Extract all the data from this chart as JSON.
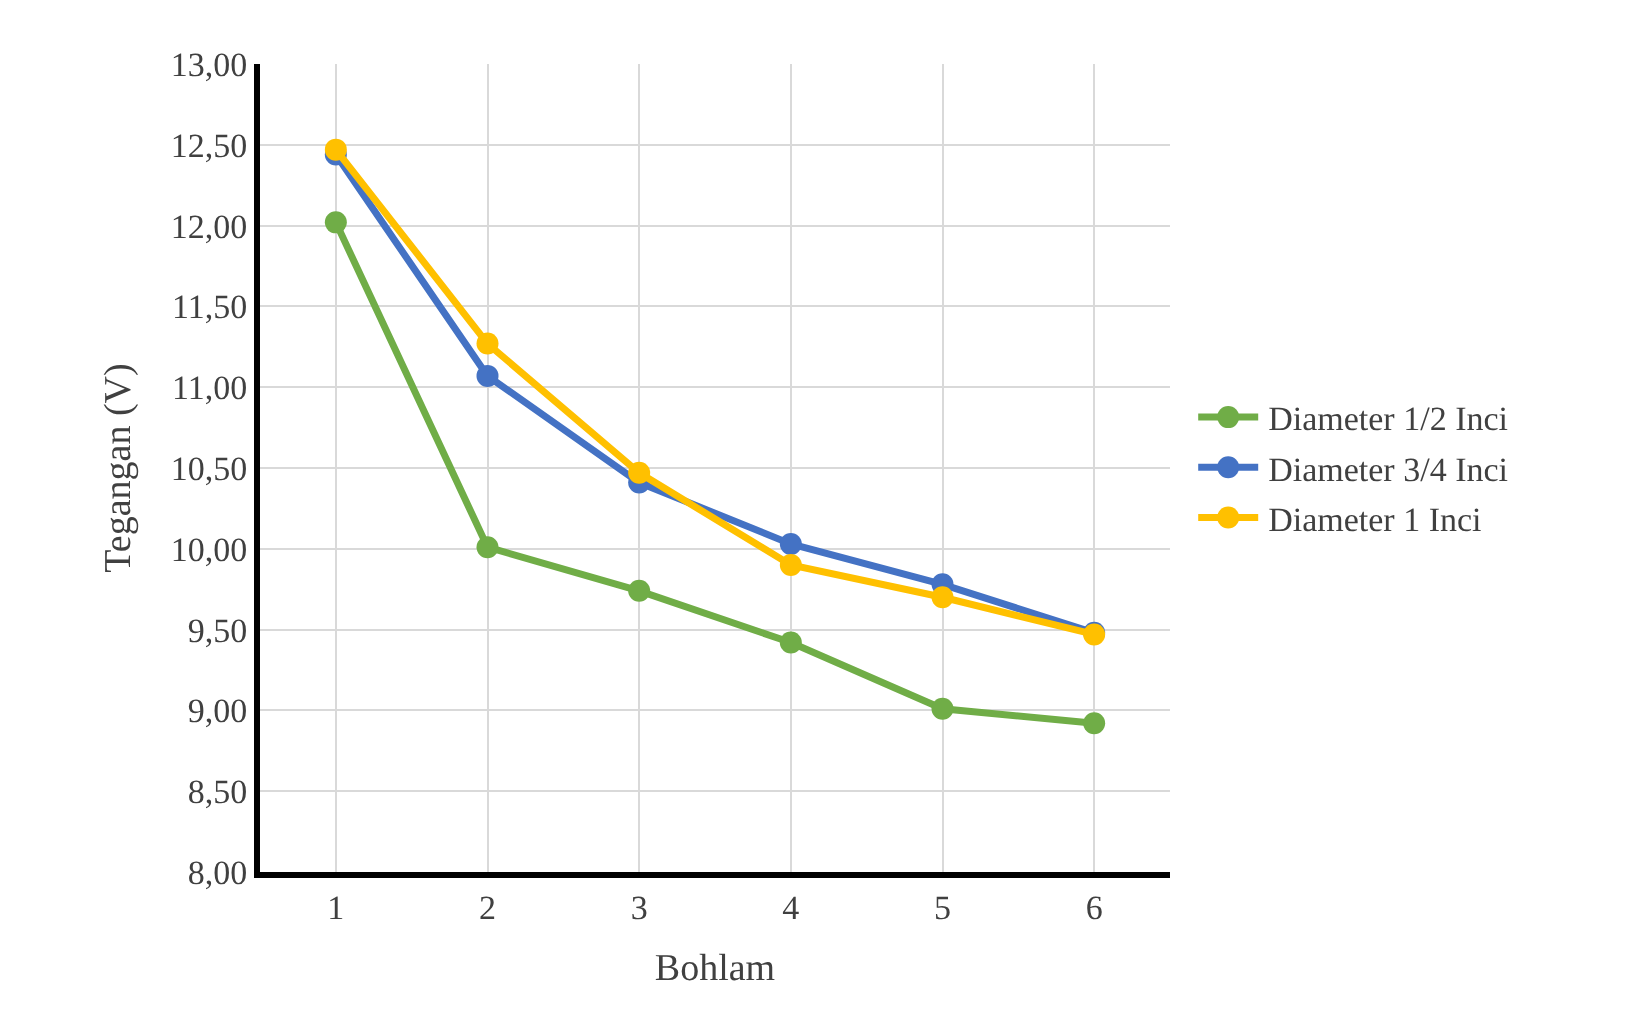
{
  "chart_data": {
    "type": "line",
    "xlabel": "Bohlam",
    "ylabel": "Tegangan (V)",
    "categories": [
      "1",
      "2",
      "3",
      "4",
      "5",
      "6"
    ],
    "series": [
      {
        "name": "Diameter 1/2 Inci",
        "color": "#70ad47",
        "values": [
          12.02,
          10.01,
          9.74,
          9.42,
          9.01,
          8.92
        ]
      },
      {
        "name": "Diameter 3/4 Inci",
        "color": "#4472c4",
        "values": [
          12.44,
          11.07,
          10.41,
          10.03,
          9.78,
          9.48
        ]
      },
      {
        "name": "Diameter 1 Inci",
        "color": "#ffc000",
        "values": [
          12.47,
          11.27,
          10.47,
          9.9,
          9.7,
          9.47
        ]
      }
    ],
    "ylim": [
      8,
      13
    ],
    "yticks": [
      {
        "value": 8,
        "label": "8,00"
      },
      {
        "value": 8.5,
        "label": "8,50"
      },
      {
        "value": 9,
        "label": "9,00"
      },
      {
        "value": 9.5,
        "label": "9,50"
      },
      {
        "value": 10,
        "label": "10,00"
      },
      {
        "value": 10.5,
        "label": "10,50"
      },
      {
        "value": 11,
        "label": "11,00"
      },
      {
        "value": 11.5,
        "label": "11,50"
      },
      {
        "value": 12,
        "label": "12,00"
      },
      {
        "value": 12.5,
        "label": "12,50"
      },
      {
        "value": 13,
        "label": "13,00"
      }
    ],
    "grid": true,
    "legend": "right",
    "marker": "circle",
    "line_style": "solid"
  }
}
